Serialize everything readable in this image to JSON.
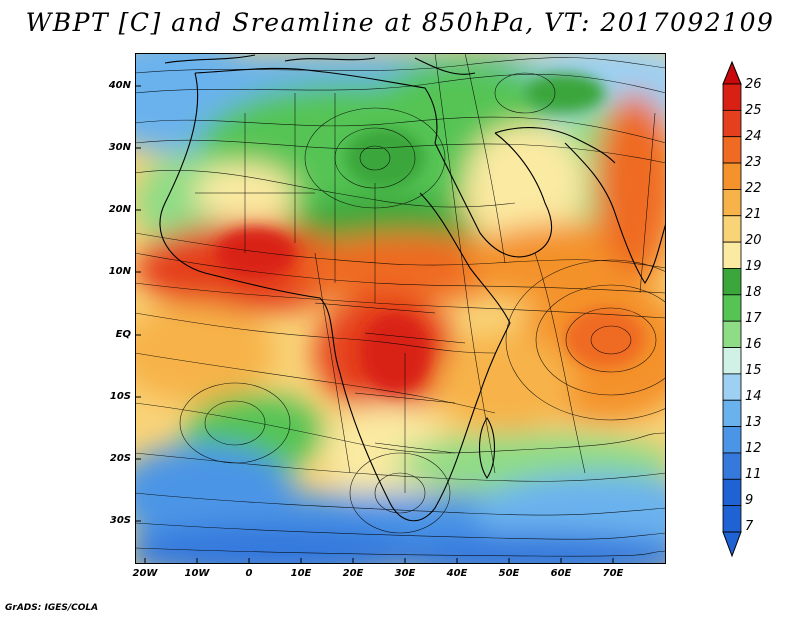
{
  "title": "WBPT [C] and Sreamline at 850hPa, VT: 2017092109",
  "credit": "GrADS: IGES/COLA",
  "map": {
    "lat_labels": [
      "40N",
      "30N",
      "20N",
      "10N",
      "EQ",
      "10S",
      "20S",
      "30S"
    ],
    "lon_labels": [
      "20W",
      "10W",
      "0",
      "10E",
      "20E",
      "30E",
      "40E",
      "50E",
      "60E",
      "70E"
    ],
    "lon_range": [
      -22,
      80
    ],
    "lat_range": [
      -37,
      45
    ]
  },
  "colorbar": {
    "labels": [
      "26",
      "25",
      "24",
      "23",
      "22",
      "21",
      "20",
      "19",
      "18",
      "17",
      "16",
      "15",
      "14",
      "13",
      "12",
      "11",
      "9",
      "7"
    ],
    "colors": [
      "#c8080a",
      "#d92015",
      "#e5401d",
      "#ef6a22",
      "#f4922c",
      "#f7b34a",
      "#f9d378",
      "#fbeaa2",
      "#3aa63b",
      "#55c455",
      "#8fdc86",
      "#cff1e6",
      "#9dd0f3",
      "#6ab2ee",
      "#4b95e6",
      "#3679dd",
      "#1f62d4",
      "#1f62d4"
    ]
  }
}
